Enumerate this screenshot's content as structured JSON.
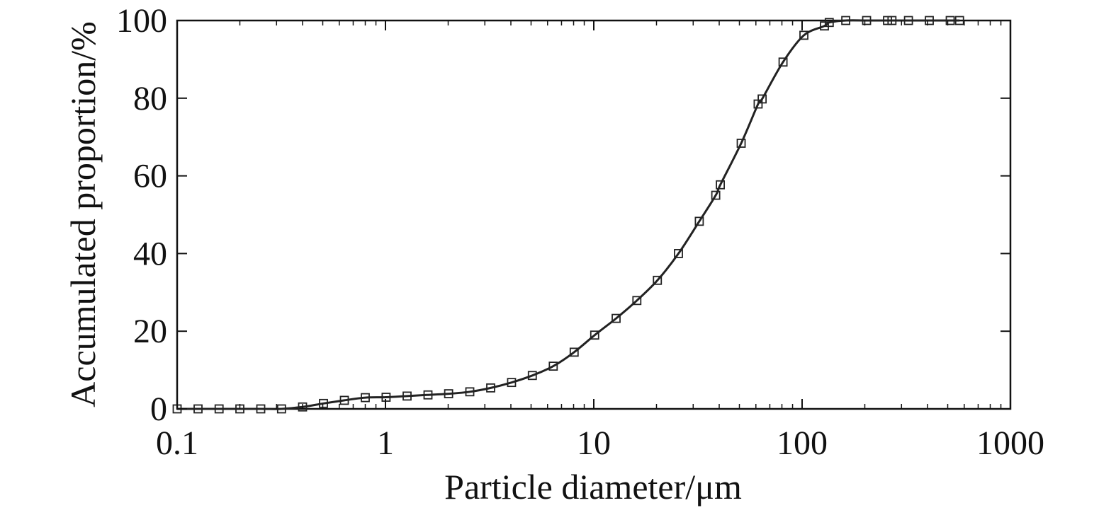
{
  "chart_data": {
    "type": "scatter",
    "title": "",
    "xlabel": "Particle diameter/μm",
    "ylabel": "Accumulated proportion/%",
    "x_scale": "log",
    "xlim": [
      0.1,
      1000
    ],
    "ylim": [
      0,
      100
    ],
    "x_ticks": [
      0.1,
      1,
      10,
      100,
      1000
    ],
    "x_tick_labels": [
      "0.1",
      "1",
      "10",
      "100",
      "1000"
    ],
    "y_ticks": [
      0,
      20,
      40,
      60,
      80,
      100
    ],
    "y_tick_labels": [
      "0",
      "20",
      "40",
      "60",
      "80",
      "100"
    ],
    "grid": false,
    "legend": "none",
    "series": [
      {
        "marker": "open-square",
        "line": "smooth",
        "color": "#222222",
        "points": [
          [
            0.1,
            0
          ],
          [
            0.126,
            0
          ],
          [
            0.159,
            0
          ],
          [
            0.2,
            0
          ],
          [
            0.252,
            0
          ],
          [
            0.317,
            0
          ],
          [
            0.4,
            0.5
          ],
          [
            0.504,
            1.4
          ],
          [
            0.635,
            2.2
          ],
          [
            0.8,
            2.9
          ],
          [
            1.007,
            3.0
          ],
          [
            1.27,
            3.3
          ],
          [
            1.6,
            3.6
          ],
          [
            2.01,
            3.9
          ],
          [
            2.54,
            4.4
          ],
          [
            3.2,
            5.4
          ],
          [
            4.03,
            6.8
          ],
          [
            5.07,
            8.6
          ],
          [
            6.39,
            11.0
          ],
          [
            8.05,
            14.6
          ],
          [
            10.1,
            19.0
          ],
          [
            12.8,
            23.3
          ],
          [
            16.1,
            27.9
          ],
          [
            20.2,
            33.1
          ],
          [
            25.5,
            40.0
          ],
          [
            32.1,
            48.3
          ],
          [
            38.5,
            55.0
          ],
          [
            40.5,
            57.7
          ],
          [
            51,
            68.4
          ],
          [
            61.5,
            78.5
          ],
          [
            64.3,
            79.8
          ],
          [
            81,
            89.3
          ],
          [
            102,
            96.2
          ],
          [
            128,
            98.6
          ],
          [
            135,
            99.5
          ],
          [
            162,
            100
          ],
          [
            204,
            100
          ],
          [
            257,
            100
          ],
          [
            270,
            100
          ],
          [
            324,
            100
          ],
          [
            408,
            100
          ],
          [
            514,
            100
          ],
          [
            570,
            100
          ]
        ]
      }
    ]
  }
}
